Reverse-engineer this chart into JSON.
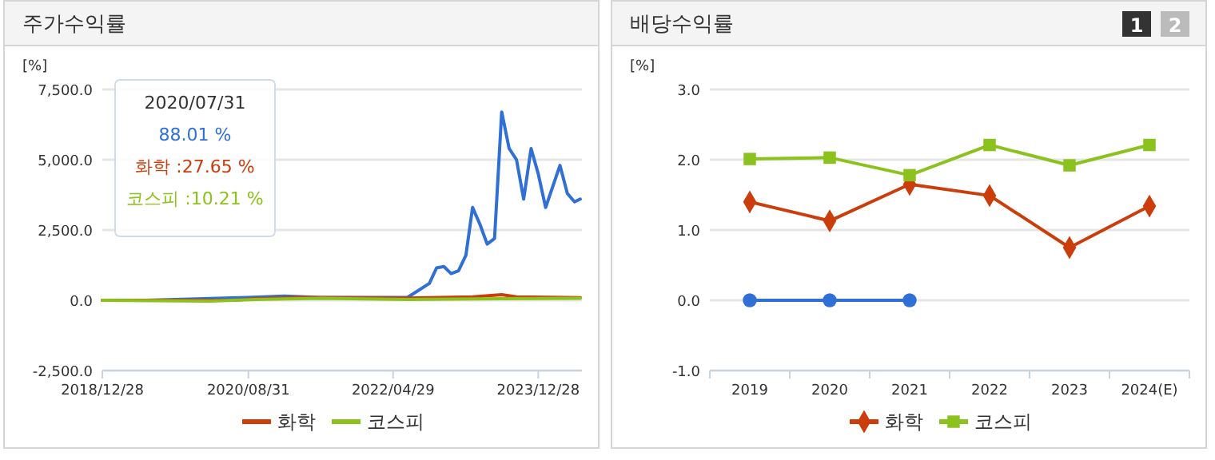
{
  "chart_data": [
    {
      "type": "line",
      "title": "주가수익률",
      "ylabel": "[%]",
      "xlim": [
        "2018-12-28",
        "2024-06-28"
      ],
      "xticks": [
        {
          "value": "2018-12-28",
          "label": "2018/12/28"
        },
        {
          "value": "2020-08-31",
          "label": "2020/08/31"
        },
        {
          "value": "2022-04-29",
          "label": "2022/04/29"
        },
        {
          "value": "2023-12-28",
          "label": "2023/12/28"
        }
      ],
      "ylim": [
        -2500,
        7500
      ],
      "yticks": [
        {
          "value": -2500,
          "label": "-2,500.0"
        },
        {
          "value": 0,
          "label": "0.0"
        },
        {
          "value": 2500,
          "label": "2,500.0"
        },
        {
          "value": 5000,
          "label": "5,000.0"
        },
        {
          "value": 7500,
          "label": "7,500.0"
        }
      ],
      "grid": "y",
      "legend": "bottom",
      "marker": "none",
      "annotations": [
        "2020/07/31",
        "88.01 %",
        "화학 :27.65 %",
        "코스피 :10.21 %"
      ],
      "series": [
        {
          "color": "#2f6fd6",
          "x": [
            "2018-12-28",
            "2019-06-28",
            "2020-08-28",
            "2021-01-28",
            "2021-06-28",
            "2022-01-28",
            "2022-06-28",
            "2022-09-28",
            "2022-10-28",
            "2022-11-28",
            "2022-12-28",
            "2023-01-28",
            "2023-02-28",
            "2023-03-28",
            "2023-04-28",
            "2023-05-28",
            "2023-06-28",
            "2023-07-28",
            "2023-08-28",
            "2023-09-28",
            "2023-10-28",
            "2023-11-28",
            "2023-12-28",
            "2024-01-28",
            "2024-03-28",
            "2024-04-28",
            "2024-05-28",
            "2024-06-21"
          ],
          "values": [
            0,
            0,
            100,
            150,
            100,
            100,
            100,
            600,
            1150,
            1200,
            950,
            1050,
            1600,
            3300,
            2700,
            2000,
            2200,
            6700,
            5400,
            5000,
            3600,
            5400,
            4500,
            3300,
            4800,
            3800,
            3500,
            3600
          ]
        },
        {
          "name": "화학",
          "color": "#cc3d0c",
          "x": [
            "2018-12-28",
            "2020-06-28",
            "2020-09-28",
            "2021-03-28",
            "2022-06-28",
            "2023-03-28",
            "2023-07-28",
            "2023-09-28",
            "2024-06-21"
          ],
          "values": [
            0,
            0,
            60,
            100,
            80,
            120,
            200,
            120,
            90
          ]
        },
        {
          "name": "코스피",
          "color": "#8cc21e",
          "x": [
            "2018-12-28",
            "2020-03-28",
            "2020-09-28",
            "2021-06-28",
            "2022-06-28",
            "2023-07-28",
            "2024-06-21"
          ],
          "values": [
            0,
            -30,
            30,
            70,
            30,
            60,
            70
          ]
        }
      ]
    },
    {
      "type": "line",
      "title": "배당수익률",
      "ylabel": "[%]",
      "categories": [
        "2019",
        "2020",
        "2021",
        "2022",
        "2023",
        "2024(E)"
      ],
      "ylim": [
        -1,
        3
      ],
      "yticks": [
        {
          "value": -1,
          "label": "-1.0"
        },
        {
          "value": 0,
          "label": "0.0"
        },
        {
          "value": 1,
          "label": "1.0"
        },
        {
          "value": 2,
          "label": "2.0"
        },
        {
          "value": 3,
          "label": "3.0"
        }
      ],
      "grid": "y",
      "legend": "bottom",
      "annotations": [
        "1",
        "2"
      ],
      "series": [
        {
          "color": "#2f6fd6",
          "marker": "circle",
          "values": [
            0,
            0,
            0,
            null,
            null,
            null
          ]
        },
        {
          "name": "화학",
          "color": "#cc3d0c",
          "marker": "diamond",
          "values": [
            1.4,
            1.13,
            1.65,
            1.49,
            0.75,
            1.34
          ]
        },
        {
          "name": "코스피",
          "color": "#8cc21e",
          "marker": "square",
          "values": [
            2.01,
            2.03,
            1.78,
            2.21,
            1.92,
            2.21
          ]
        }
      ]
    }
  ]
}
